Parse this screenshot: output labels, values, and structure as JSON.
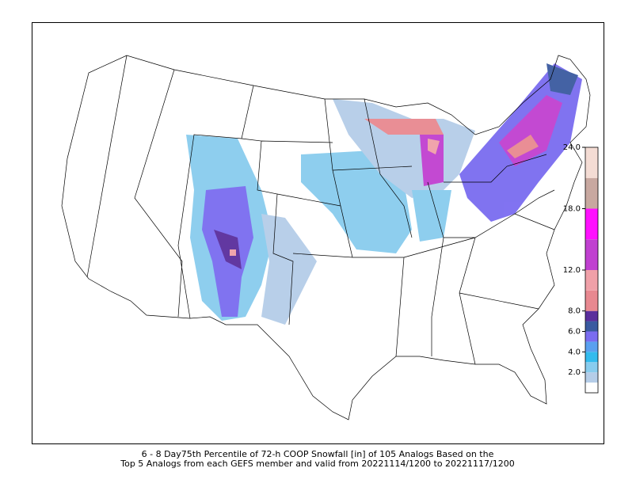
{
  "caption": [
    "6 - 8 Day75th Percentile of 72-h COOP Snowfall [in] of 105 Analogs Based on the",
    "Top 5 Analogs from each GEFS member and valid from 20221114/1200 to 20221117/1200"
  ],
  "colorbar": {
    "lim": [
      0,
      24
    ],
    "bounds": [
      0,
      1,
      2,
      3,
      4,
      5,
      6,
      7,
      8,
      10,
      12,
      15,
      18,
      21,
      24
    ],
    "colors": [
      "#ffffff",
      "#b5cde8",
      "#88ccee",
      "#33bbee",
      "#5aa0f0",
      "#7a6cf0",
      "#3a5aa0",
      "#5a2e9c",
      "#e88890",
      "#f0a0a8",
      "#c040d0",
      "#ff10ff",
      "#c8a8a0",
      "#f4dcd4"
    ],
    "ticks": [
      {
        "value": 2,
        "label": "2.0"
      },
      {
        "value": 4,
        "label": "4.0"
      },
      {
        "value": 6,
        "label": "6.0"
      },
      {
        "value": 8,
        "label": "8.0"
      },
      {
        "value": 12,
        "label": "12.0"
      },
      {
        "value": 18,
        "label": "18.0"
      },
      {
        "value": 24,
        "label": "24.0"
      }
    ]
  }
}
